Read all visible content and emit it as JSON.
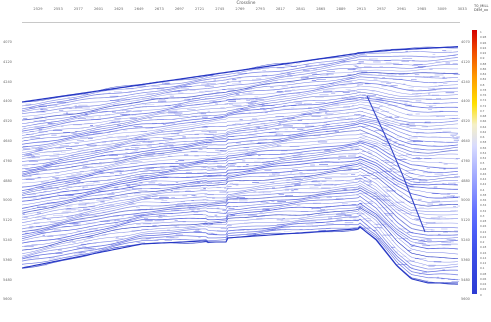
{
  "axes": {
    "top_title": "Crossline",
    "x_ticks": [
      "2529",
      "2553",
      "2577",
      "2601",
      "2625",
      "2649",
      "2673",
      "2697",
      "2721",
      "2745",
      "2769",
      "2793",
      "2817",
      "2841",
      "2865",
      "2889",
      "2913",
      "2937",
      "2961",
      "2985",
      "3009",
      "3033"
    ],
    "left_ticks": [
      "4070",
      "4120",
      "4240",
      "4400",
      "4520",
      "4640",
      "4760",
      "4880",
      "5000",
      "5120",
      "5240",
      "5360",
      "5480",
      "5600",
      "5720"
    ],
    "mid_ticks": [
      "4070",
      "4120",
      "4240",
      "4400",
      "4520",
      "4640",
      "4760",
      "4880",
      "5000",
      "5120",
      "5240",
      "5360",
      "5480",
      "5600",
      "5720"
    ]
  },
  "colorbar": {
    "title": "T0_MILL\nDEM_xx",
    "ticks": [
      "1",
      "0.98",
      "0.96",
      "0.94",
      "0.92",
      "0.9",
      "0.88",
      "0.86",
      "0.84",
      "0.82",
      "0.8",
      "0.78",
      "0.76",
      "0.74",
      "0.72",
      "0.7",
      "0.68",
      "0.66",
      "0.64",
      "0.62",
      "0.6",
      "0.58",
      "0.56",
      "0.54",
      "0.52",
      "0.5",
      "0.48",
      "0.46",
      "0.44",
      "0.42",
      "0.4",
      "0.38",
      "0.36",
      "0.34",
      "0.32",
      "0.3",
      "0.28",
      "0.26",
      "0.24",
      "0.22",
      "0.2",
      "0.18",
      "0.16",
      "0.14",
      "0.12",
      "0.1",
      "0.08",
      "0.06",
      "0.04",
      "0.02",
      "0"
    ]
  },
  "colors": {
    "plot_line": "#4b58dc",
    "dense_line": "#2637c4",
    "background": "#ffffff"
  }
}
